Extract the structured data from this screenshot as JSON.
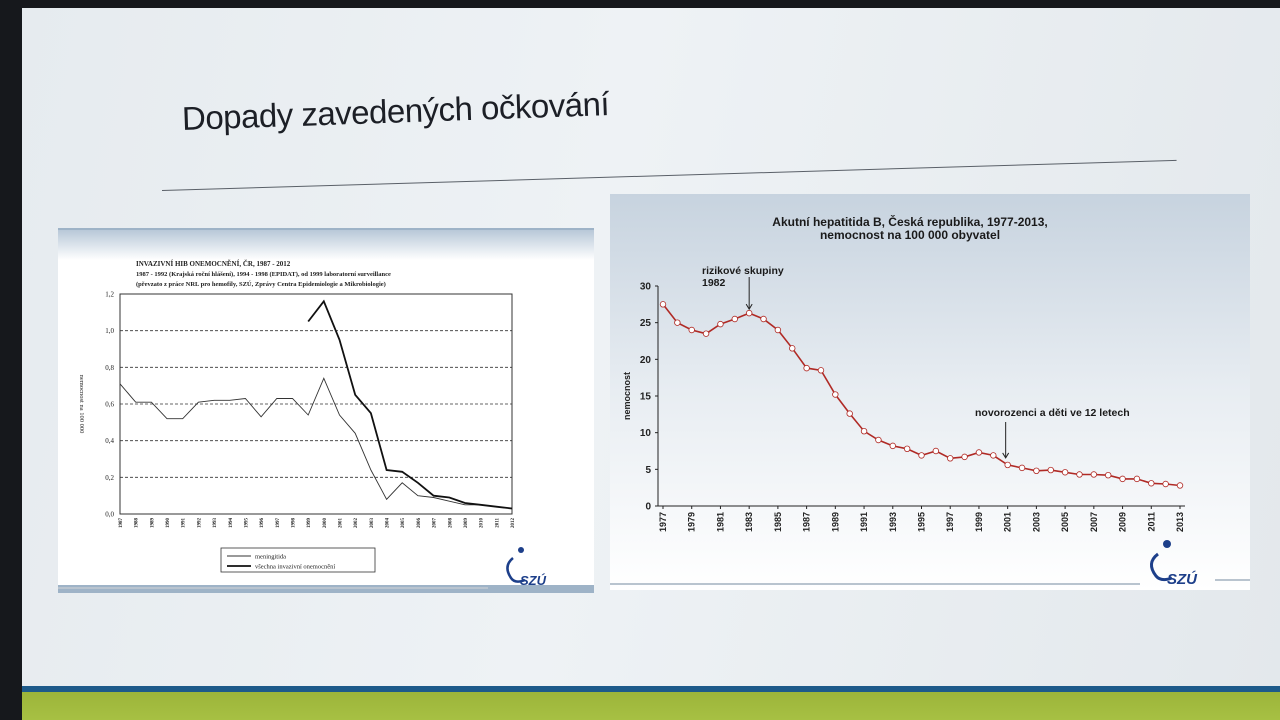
{
  "slide": {
    "title": "Dopady zavedených očkování"
  },
  "chart_data": [
    {
      "type": "line",
      "title": "INVAZIVNÍ HIB ONEMOCNĚNÍ, ČR, 1987 - 2012",
      "subtitle_lines": [
        "1987 - 1992 (Krajská roční hlášení), 1994 - 1998 (EPIDAT), od 1999 laboratorní surveillance",
        "(převzato z práce  NRL pro hemofily, SZÚ, Zprávy Centra Epidemiologie a Mikrobiologie)"
      ],
      "ylabel": "nemocnost na 100 000",
      "xlabel": "",
      "ylim": [
        0,
        1.2
      ],
      "yticks": [
        "0,0",
        "0,2",
        "0,4",
        "0,6",
        "0,8",
        "1,0",
        "1,2"
      ],
      "x": [
        "1987",
        "1988",
        "1989",
        "1990",
        "1991",
        "1992",
        "1993",
        "1994",
        "1995",
        "1996",
        "1997",
        "1998",
        "1999",
        "2000",
        "2001",
        "2002",
        "2003",
        "2004",
        "2005",
        "2006",
        "2007",
        "2008",
        "2009",
        "2010",
        "2011",
        "2012"
      ],
      "series": [
        {
          "name": "meningitida",
          "values": [
            0.71,
            0.61,
            0.61,
            0.52,
            0.52,
            0.61,
            0.62,
            0.62,
            0.63,
            0.53,
            0.63,
            0.63,
            0.54,
            0.74,
            0.54,
            0.44,
            0.24,
            0.08,
            0.17,
            0.1,
            0.09,
            0.07,
            0.05,
            0.05,
            0.04,
            0.03
          ]
        },
        {
          "name": "všechna invazivní onemocnění",
          "values": [
            null,
            null,
            null,
            null,
            null,
            null,
            null,
            null,
            null,
            null,
            null,
            null,
            1.05,
            1.16,
            0.95,
            0.65,
            0.55,
            0.24,
            0.23,
            0.17,
            0.1,
            0.09,
            0.06,
            0.05,
            0.04,
            0.03
          ]
        }
      ],
      "grid": "dashed horizontal",
      "legend": "bottom",
      "logo_text": "SZÚ"
    },
    {
      "type": "line",
      "title_lines": [
        "Akutní hepatitida B, Česká republika, 1977-2013,",
        "nemocnost na 100 000 obyvatel"
      ],
      "ylabel": "nemocnost",
      "xlabel": "",
      "ylim": [
        0,
        30
      ],
      "yticks": [
        "0",
        "5",
        "10",
        "15",
        "20",
        "25",
        "30"
      ],
      "xticks": [
        "1977",
        "1979",
        "1981",
        "1983",
        "1985",
        "1987",
        "1989",
        "1991",
        "1993",
        "1995",
        "1997",
        "1999",
        "2001",
        "2003",
        "2005",
        "2007",
        "2009",
        "2011",
        "2013"
      ],
      "x": [
        1977,
        1978,
        1979,
        1980,
        1981,
        1982,
        1983,
        1984,
        1985,
        1986,
        1987,
        1988,
        1989,
        1990,
        1991,
        1992,
        1993,
        1994,
        1995,
        1996,
        1997,
        1998,
        1999,
        2000,
        2001,
        2002,
        2003,
        2004,
        2005,
        2006,
        2007,
        2008,
        2009,
        2010,
        2011,
        2012,
        2013
      ],
      "series": [
        {
          "values": [
            27.5,
            25.0,
            24.0,
            23.5,
            24.8,
            25.5,
            26.3,
            25.5,
            24.0,
            21.5,
            18.8,
            18.5,
            15.2,
            12.6,
            10.2,
            9.0,
            8.2,
            7.8,
            6.9,
            7.5,
            6.5,
            6.7,
            7.3,
            6.9,
            5.6,
            5.2,
            4.8,
            4.9,
            4.6,
            4.3,
            4.3,
            4.2,
            3.7,
            3.7,
            3.1,
            3.0,
            2.8
          ]
        }
      ],
      "annotations": [
        {
          "text_lines": [
            "rizikové skupiny",
            "1982"
          ],
          "x": 1983,
          "y": 26.3
        },
        {
          "text_lines": [
            "novorozenci a děti ve 12 letech"
          ],
          "x": 2001,
          "y": 5.6
        }
      ],
      "grid": false,
      "logo_text": "SZÚ"
    }
  ]
}
